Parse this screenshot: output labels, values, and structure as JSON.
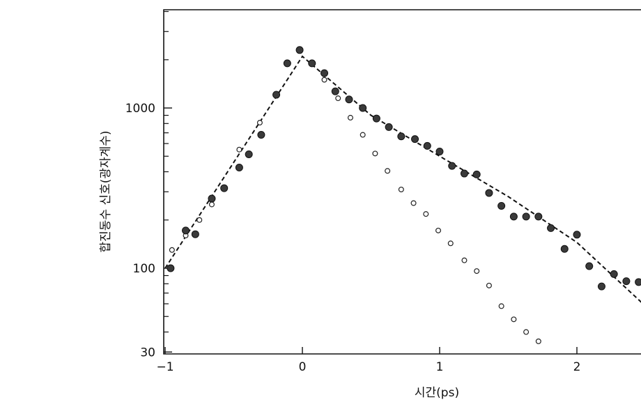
{
  "chart_data": {
    "type": "scatter",
    "xlabel": "시간(ps)",
    "ylabel": "합진동수 신호(광자계수)",
    "xscale": "linear",
    "yscale": "log",
    "xlim": [
      -1.05,
      2.5
    ],
    "ylim": [
      30,
      5000
    ],
    "grid": false,
    "legend": "none",
    "x_ticks": [
      -1,
      0,
      1,
      2
    ],
    "x_tick_labels": [
      "−1",
      "0",
      "1",
      "2"
    ],
    "y_ticks": [
      30,
      100,
      1000
    ],
    "y_tick_labels": [
      "30",
      "100",
      "1000"
    ],
    "y_minor_ticks": [
      40,
      50,
      60,
      70,
      80,
      90,
      200,
      300,
      400,
      500,
      600,
      700,
      800,
      900,
      2000,
      3000,
      4000
    ],
    "series": [
      {
        "style": "filled-circle",
        "x": [
          -0.96,
          -0.85,
          -0.78,
          -0.66,
          -0.57,
          -0.46,
          -0.39,
          -0.3,
          -0.19,
          -0.11,
          -0.02,
          0.07,
          0.16,
          0.24,
          0.34,
          0.44,
          0.54,
          0.63,
          0.72,
          0.82,
          0.91,
          1.0,
          1.09,
          1.18,
          1.27,
          1.36,
          1.45,
          1.54,
          1.63,
          1.72,
          1.81,
          1.91,
          2.0,
          2.09,
          2.18,
          2.27,
          2.36,
          2.45
        ],
        "y": [
          100,
          172,
          163,
          272,
          316,
          425,
          514,
          680,
          1210,
          1900,
          2300,
          1900,
          1650,
          1270,
          1130,
          1000,
          860,
          760,
          665,
          640,
          580,
          535,
          435,
          390,
          385,
          295,
          245,
          210,
          210,
          210,
          178,
          132,
          162,
          103,
          77,
          92,
          83,
          82
        ]
      },
      {
        "style": "open-circle",
        "x": [
          -0.95,
          -0.85,
          -0.75,
          -0.66,
          -0.46,
          -0.31,
          0.16,
          0.26,
          0.35,
          0.44,
          0.53,
          0.62,
          0.72,
          0.81,
          0.9,
          0.99,
          1.08,
          1.18,
          1.27,
          1.36,
          1.45,
          1.54,
          1.63,
          1.72
        ],
        "y": [
          130,
          160,
          200,
          250,
          550,
          810,
          1500,
          1150,
          870,
          680,
          520,
          405,
          310,
          255,
          218,
          172,
          143,
          112,
          96,
          78,
          58,
          48,
          40,
          35
        ]
      },
      {
        "style": "dashed-line",
        "x": [
          -1.0,
          0.0,
          0.5,
          1.0,
          1.5,
          2.0,
          2.5
        ],
        "y": [
          100,
          2100,
          900,
          500,
          280,
          145,
          58
        ]
      }
    ]
  }
}
